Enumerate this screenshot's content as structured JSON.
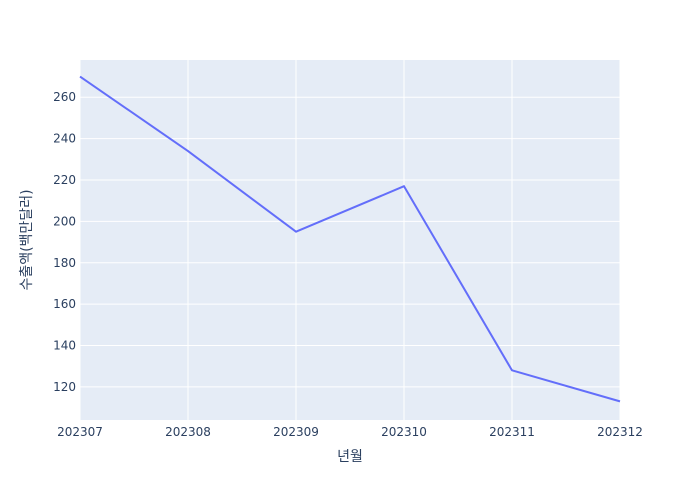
{
  "chart_data": {
    "type": "line",
    "title": "",
    "xlabel": "년월",
    "ylabel": "수출액(백만달러)",
    "categories": [
      "202307",
      "202308",
      "202309",
      "202310",
      "202311",
      "202312"
    ],
    "series": [
      {
        "values": [
          270,
          234,
          195,
          217,
          128,
          113
        ]
      }
    ],
    "ylim": [
      104,
      278
    ],
    "y_ticks": [
      120,
      140,
      160,
      180,
      200,
      220,
      240,
      260
    ],
    "grid": true,
    "legend": "none",
    "colors": {
      "plot_bg": "#e5ecf6",
      "line": "#636efa",
      "grid": "#ffffff",
      "text": "#2a3f5f"
    }
  }
}
